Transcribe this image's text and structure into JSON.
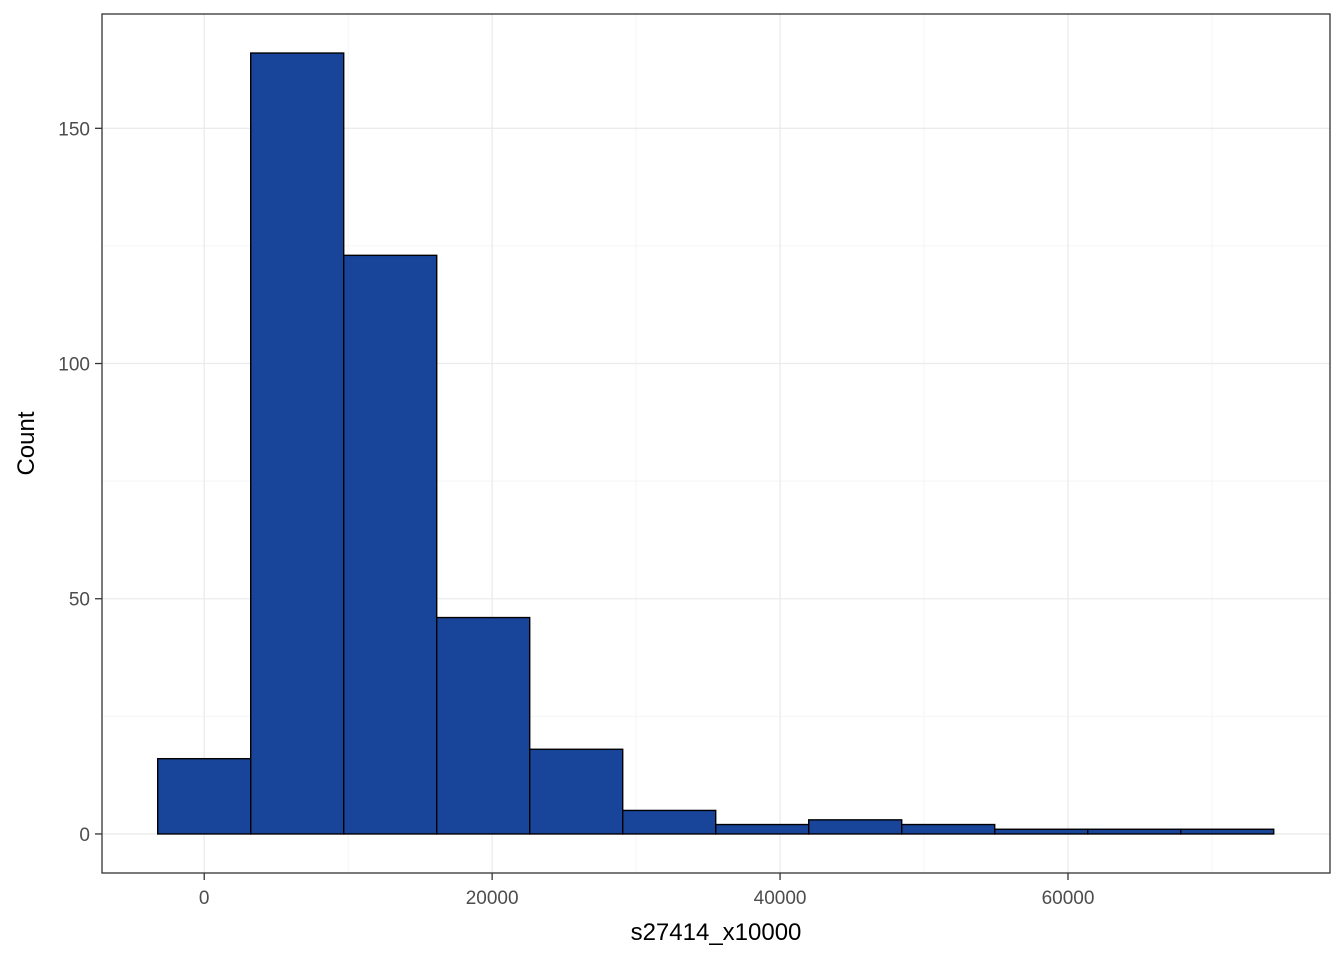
{
  "chart_data": {
    "type": "bar",
    "subtype": "histogram",
    "title": "",
    "xlabel": "s27414_x10000",
    "ylabel": "Count",
    "bin_width": 6460,
    "bins": [
      {
        "x0": -3230,
        "x1": 3230,
        "count": 16
      },
      {
        "x0": 3230,
        "x1": 9690,
        "count": 166
      },
      {
        "x0": 9690,
        "x1": 16150,
        "count": 123
      },
      {
        "x0": 16150,
        "x1": 22610,
        "count": 46
      },
      {
        "x0": 22610,
        "x1": 29070,
        "count": 18
      },
      {
        "x0": 29070,
        "x1": 35530,
        "count": 5
      },
      {
        "x0": 35530,
        "x1": 41990,
        "count": 2
      },
      {
        "x0": 41990,
        "x1": 48450,
        "count": 3
      },
      {
        "x0": 48450,
        "x1": 54910,
        "count": 2
      },
      {
        "x0": 54910,
        "x1": 61370,
        "count": 1
      },
      {
        "x0": 61370,
        "x1": 67830,
        "count": 1
      },
      {
        "x0": 67830,
        "x1": 74290,
        "count": 1
      }
    ],
    "xlim": [
      -7100,
      78200
    ],
    "ylim": [
      -8.3,
      174.3
    ],
    "x_ticks": [
      {
        "value": 0,
        "label": "0"
      },
      {
        "value": 20000,
        "label": "20000"
      },
      {
        "value": 40000,
        "label": "40000"
      },
      {
        "value": 60000,
        "label": "60000"
      }
    ],
    "y_ticks": [
      {
        "value": 0,
        "label": "0"
      },
      {
        "value": 50,
        "label": "50"
      },
      {
        "value": 100,
        "label": "100"
      },
      {
        "value": 150,
        "label": "150"
      }
    ],
    "x_minor_grid": [
      -10000,
      10000,
      30000,
      50000,
      70000
    ],
    "y_minor_grid": [
      25,
      75,
      125
    ],
    "grid": true,
    "legend": "none",
    "colors": {
      "bar_fill": "#18449a",
      "bar_stroke": "#000000",
      "grid_major": "#ebebeb",
      "grid_minor": "#f5f5f5",
      "panel_border": "#333333"
    }
  }
}
